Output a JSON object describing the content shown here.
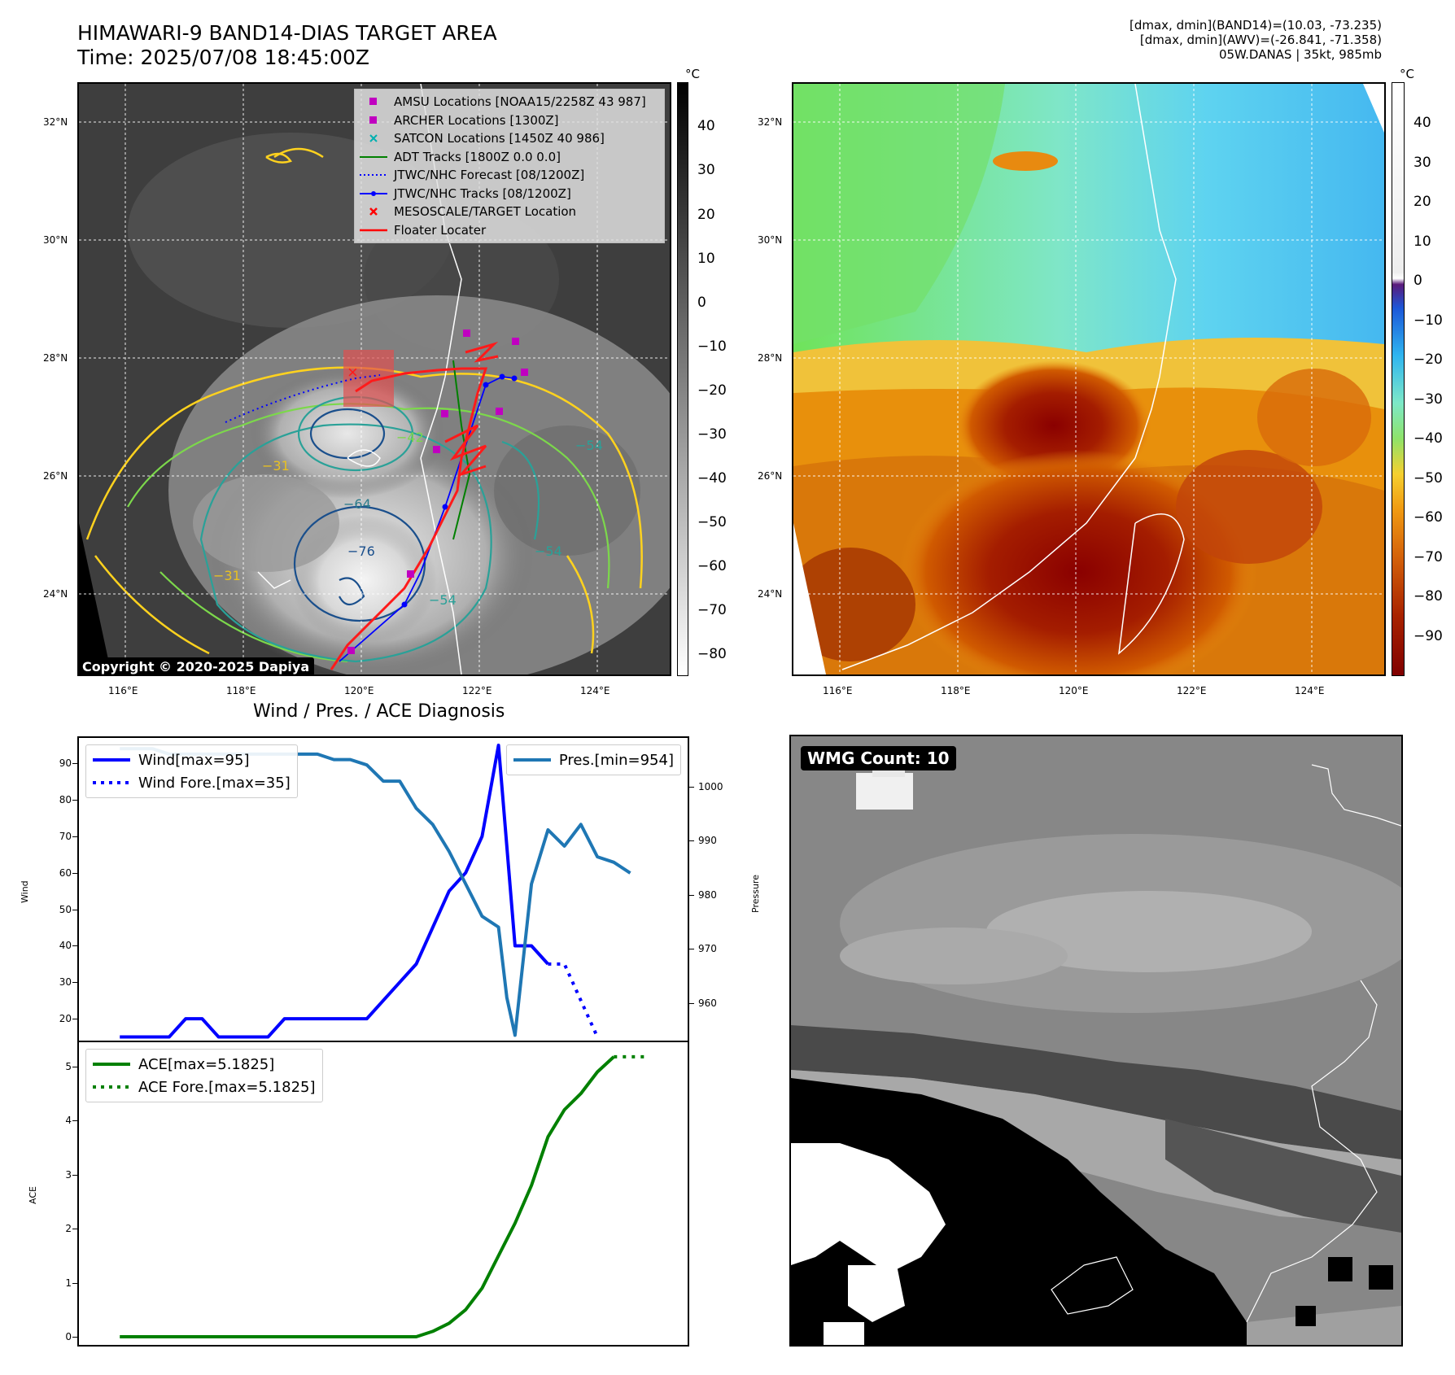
{
  "header": {
    "title_line1": "HIMAWARI-9 BAND14-DIAS TARGET AREA",
    "title_line2": "Time: 2025/07/08 18:45:00Z",
    "info_line1": "[dmax, dmin](BAND14)=(10.03, -73.235)",
    "info_line2": "[dmax, dmin](AWV)=(-26.841, -71.358)",
    "info_line3": "05W.DANAS | 35kt, 985mb"
  },
  "map_ticks": {
    "lat": [
      "32°N",
      "30°N",
      "28°N",
      "26°N",
      "24°N"
    ],
    "lon": [
      "116°E",
      "118°E",
      "120°E",
      "122°E",
      "124°E"
    ]
  },
  "ir_panel": {
    "colorbar_unit": "°C",
    "colorbar_ticks": [
      "40",
      "30",
      "20",
      "10",
      "0",
      "−10",
      "−20",
      "−30",
      "−40",
      "−50",
      "−60",
      "−70",
      "−80"
    ],
    "contour_labels": [
      "−64",
      "−76",
      "−54",
      "−31",
      "−54",
      "−54",
      "−31",
      "−42"
    ],
    "legend": [
      {
        "label": "AMSU Locations [NOAA15/2258Z 43 987]",
        "symbol": "square",
        "color": "#c000c0"
      },
      {
        "label": "ARCHER Locations [1300Z]",
        "symbol": "square",
        "color": "#c000c0"
      },
      {
        "label": "SATCON Locations [1450Z 40 986]",
        "symbol": "x",
        "color": "#00b0b0"
      },
      {
        "label": "ADT Tracks [1800Z 0.0 0.0]",
        "symbol": "line",
        "color": "#008000"
      },
      {
        "label": "JTWC/NHC Forecast [08/1200Z]",
        "symbol": "dotted",
        "color": "#0000ff"
      },
      {
        "label": "JTWC/NHC Tracks [08/1200Z]",
        "symbol": "line-dot",
        "color": "#0000ff"
      },
      {
        "label": "MESOSCALE/TARGET Location",
        "symbol": "x",
        "color": "#ff0000"
      },
      {
        "label": "Floater Locater",
        "symbol": "line",
        "color": "#ff0000"
      }
    ],
    "copyright": "Copyright © 2020-2025 Dapiya"
  },
  "wv_panel": {
    "colorbar_unit": "°C",
    "colorbar_ticks": [
      "40",
      "30",
      "20",
      "10",
      "0",
      "−10",
      "−20",
      "−30",
      "−40",
      "−50",
      "−60",
      "−70",
      "−80",
      "−90"
    ]
  },
  "diag_title": "Wind / Pres. / ACE Diagnosis",
  "wmg_badge": "WMG Count: 10",
  "chart_data": [
    {
      "type": "line",
      "title": "Wind / Pres. / ACE Diagnosis",
      "ylabel": "Wind",
      "ylabel_right": "Pressure",
      "ylim": [
        14,
        97
      ],
      "y2lim": [
        953,
        1009
      ],
      "yticks": [
        20,
        30,
        40,
        50,
        60,
        70,
        80,
        90
      ],
      "y2ticks": [
        960,
        970,
        980,
        990,
        1000
      ],
      "x": [
        0,
        1,
        2,
        3,
        4,
        5,
        6,
        7,
        8,
        9,
        10,
        11,
        12,
        13,
        14,
        15,
        16,
        17,
        17.5,
        18,
        19,
        20,
        21,
        21.5,
        22,
        23,
        24,
        25
      ],
      "series": [
        {
          "name": "Wind[max=95]",
          "style": "solid",
          "color": "#0000ff",
          "values": [
            15,
            15,
            15,
            15,
            15,
            20,
            20,
            15,
            15,
            15,
            15,
            20,
            20,
            20,
            20,
            20,
            20,
            30,
            35,
            40,
            45,
            55,
            60,
            65,
            70,
            95,
            40,
            40
          ]
        },
        {
          "name": "Wind Fore.[max=35]",
          "style": "dotted",
          "color": "#0000ff",
          "x": [
            25,
            26,
            27,
            28
          ],
          "values": [
            35,
            35,
            25,
            15
          ]
        },
        {
          "name": "Pres.[min=954]",
          "style": "solid",
          "color": "#1f77b4",
          "axis": "right",
          "values": [
            1007,
            1007,
            1007,
            1006,
            1006,
            1006,
            1006,
            1006,
            1006,
            1006,
            1006,
            1006,
            1006,
            1006,
            1005,
            1005,
            1004,
            1001,
            999,
            995,
            993,
            985,
            977,
            975,
            963,
            954,
            992,
            986
          ]
        },
        {
          "name": "Pres.[min=954]",
          "style": "solid",
          "color": "#1f77b4",
          "axis": "right",
          "x": [
            25,
            26,
            27,
            28
          ],
          "values": [
            986,
            989,
            987,
            985
          ]
        }
      ],
      "wind_series": {
        "x": [
          0,
          1,
          2,
          2.5,
          3,
          4,
          5,
          6,
          7,
          8,
          9,
          10,
          11,
          12,
          13,
          14,
          15,
          16,
          17,
          18,
          19,
          20,
          21,
          21.5,
          22,
          23,
          24,
          25,
          26
        ],
        "values": [
          15,
          15,
          15,
          15,
          15,
          20,
          20,
          15,
          15,
          15,
          15,
          20,
          20,
          20,
          20,
          20,
          20,
          25,
          30,
          35,
          45,
          55,
          60,
          65,
          70,
          95,
          40,
          40,
          35
        ]
      },
      "wind_fore": {
        "x": [
          26,
          27,
          28,
          29
        ],
        "values": [
          35,
          35,
          25,
          15
        ]
      },
      "pres_series": {
        "x": [
          0,
          1,
          2,
          3,
          4,
          5,
          6,
          7,
          8,
          9,
          10,
          11,
          12,
          13,
          14,
          15,
          16,
          17,
          18,
          19,
          20,
          21,
          22,
          23,
          23.5,
          24,
          25,
          26,
          27,
          28,
          29,
          30,
          31
        ],
        "values": [
          1007,
          1007,
          1007,
          1006,
          1006,
          1006,
          1006,
          1006,
          1006,
          1006,
          1006,
          1006,
          1006,
          1005,
          1005,
          1004,
          1001,
          1001,
          996,
          993,
          988,
          982,
          976,
          974,
          961,
          954,
          982,
          992,
          989,
          993,
          987,
          986,
          984
        ]
      }
    },
    {
      "type": "line",
      "ylabel": "ACE",
      "ylim": [
        -0.15,
        5.45
      ],
      "yticks": [
        0,
        1,
        2,
        3,
        4,
        5
      ],
      "series": [
        {
          "name": "ACE[max=5.1825]",
          "style": "solid",
          "color": "#008000",
          "x": [
            0,
            5,
            10,
            15,
            18,
            19,
            20,
            21,
            22,
            23,
            24,
            25,
            26,
            27,
            28,
            29,
            30
          ],
          "values": [
            0,
            0,
            0,
            0,
            0,
            0.1,
            0.25,
            0.5,
            0.9,
            1.5,
            2.1,
            2.8,
            3.7,
            4.2,
            4.5,
            4.9,
            5.18
          ]
        },
        {
          "name": "ACE Fore.[max=5.1825]",
          "style": "dotted",
          "color": "#008000",
          "x": [
            30,
            31,
            32
          ],
          "values": [
            5.18,
            5.18,
            5.18
          ]
        }
      ]
    }
  ]
}
